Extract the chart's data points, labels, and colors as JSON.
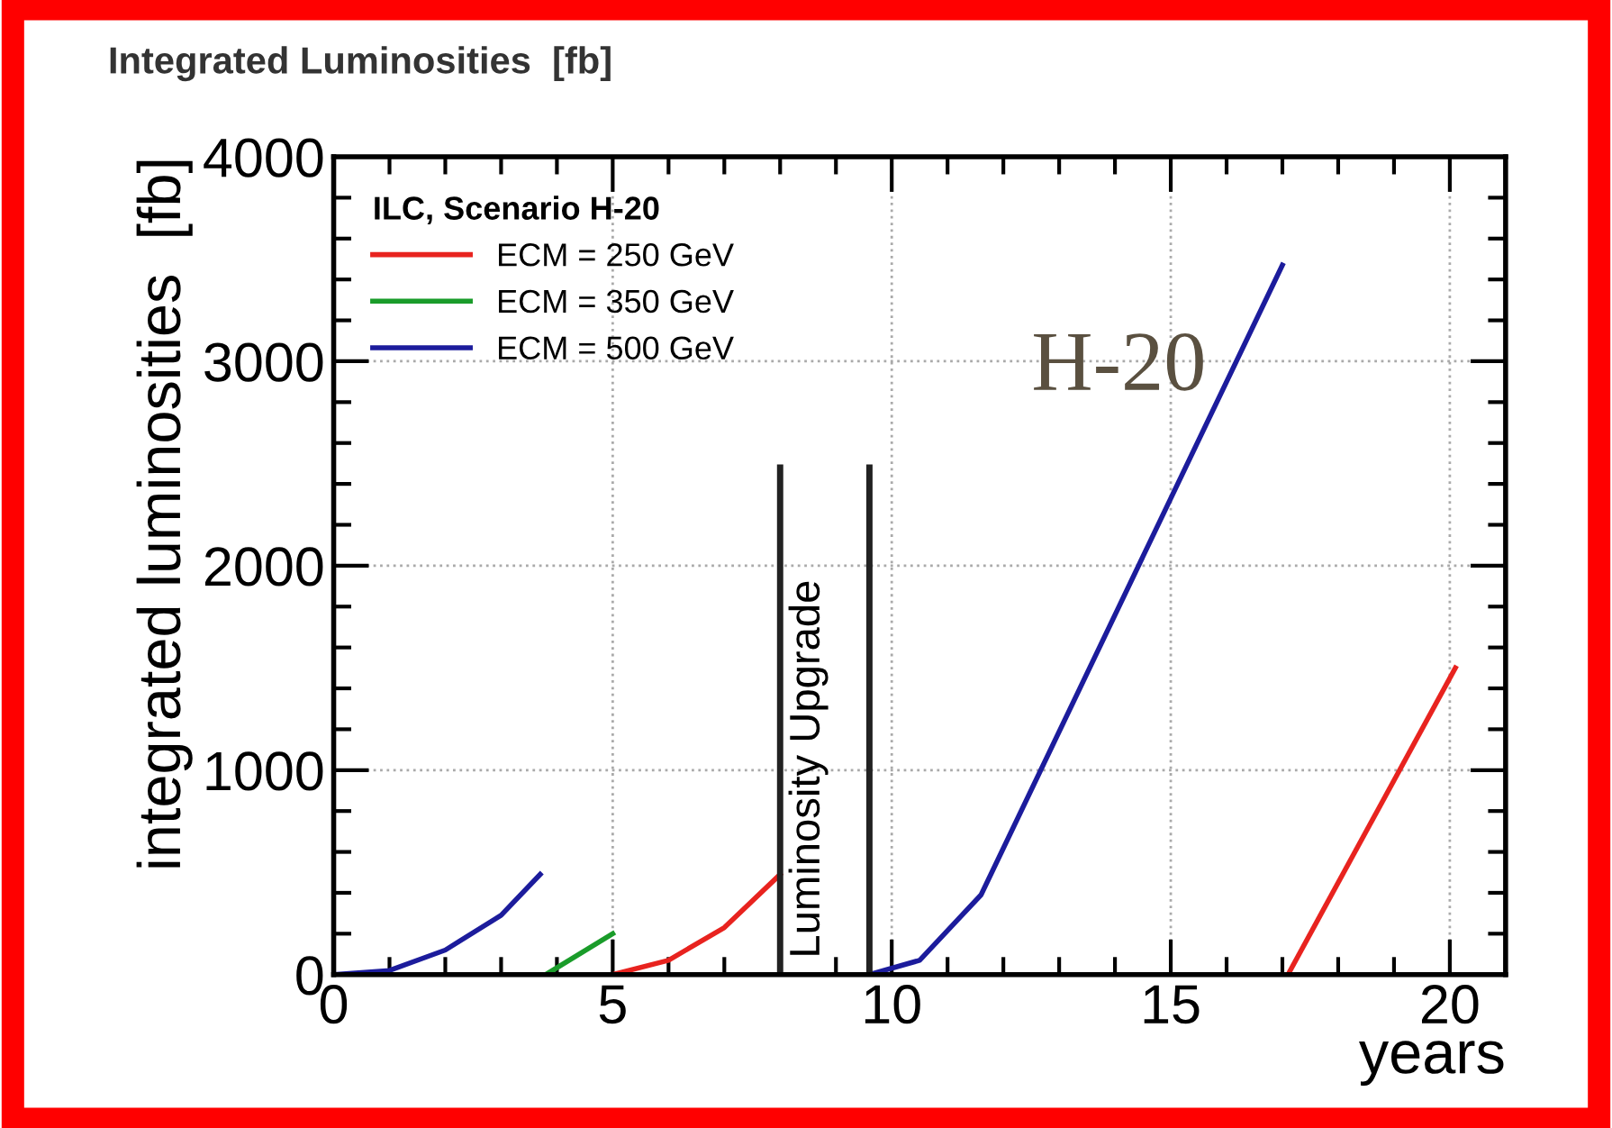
{
  "chart_data": {
    "type": "line",
    "title": "Integrated Luminosities  [fb]",
    "xlabel": "years",
    "ylabel": "integrated luminosities  [fb]",
    "legend_title": "ILC, Scenario H-20",
    "series": [
      {
        "name": "ECM = 250 GeV",
        "color": "#e8231f",
        "x": [
          5,
          6,
          7,
          8
        ],
        "values": [
          0,
          70,
          230,
          490
        ]
      },
      {
        "name": "ECM = 350 GeV",
        "color": "#1a9c2a",
        "x": [
          3.8,
          5
        ],
        "values": [
          0,
          200
        ]
      },
      {
        "name": "ECM = 500 GeV",
        "color": "#1c1c9c",
        "x": [
          0,
          1,
          2,
          3,
          3.7
        ],
        "values": [
          0,
          20,
          120,
          290,
          490
        ]
      },
      {
        "color": "#1c1c9c",
        "x": [
          9.6,
          10.5,
          11.6,
          17.0
        ],
        "values": [
          0,
          70,
          390,
          3470
        ]
      },
      {
        "color": "#e8231f",
        "x": [
          17.1,
          20.1
        ],
        "values": [
          0,
          1500
        ]
      }
    ],
    "ref_lines": [
      {
        "axis": "x",
        "value": 8.0,
        "label": "Luminosity Upgrade",
        "color": "#222222"
      },
      {
        "axis": "x",
        "value": 9.6,
        "color": "#222222"
      }
    ],
    "annotations": [
      "H-20"
    ],
    "xlim": [
      0,
      21
    ],
    "xticks": [
      0,
      5,
      10,
      15,
      20
    ],
    "ylim": [
      0,
      4000
    ],
    "yticks": [
      0,
      1000,
      2000,
      3000,
      4000
    ],
    "grid": true,
    "legend": "top left",
    "line_style": "solid",
    "marker": "none"
  }
}
